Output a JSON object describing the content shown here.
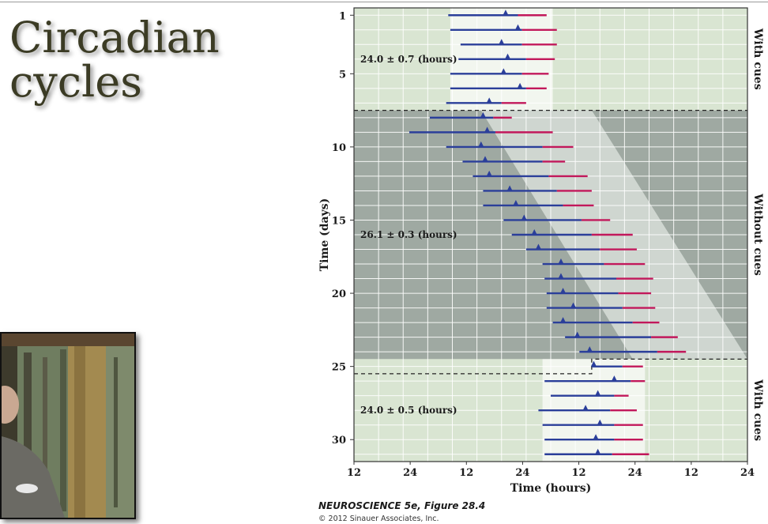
{
  "slide": {
    "title_line1": "Circadian",
    "title_line2": "cycles",
    "caption": "NEUROSCIENCE 5e, Figure 28.4",
    "copyright": "© 2012 Sinauer Associates, Inc."
  },
  "chart_data": {
    "type": "actogram",
    "xlabel": "Time (hours)",
    "ylabel": "Time (days)",
    "x_ticks": [
      "12",
      "24",
      "12",
      "24",
      "12",
      "24",
      "12",
      "24"
    ],
    "y_ticks": [
      1,
      5,
      10,
      15,
      20,
      25,
      30
    ],
    "xlim": [
      0,
      96
    ],
    "ylim": [
      1,
      31
    ],
    "grid": true,
    "phase_labels": [
      "With cues",
      "Without cues",
      "With cues"
    ],
    "period_annotations": [
      {
        "text": "24.0 ± 0.7 (hours)",
        "day": 4
      },
      {
        "text": "26.1 ± 0.3 (hours)",
        "day": 16
      },
      {
        "text": "24.0 ± 0.5 (hours)",
        "day": 28
      }
    ],
    "colors": {
      "wake": "#2b3f9a",
      "sleep": "#c2185b",
      "marker": "#2b3f9a",
      "bg_light": "#d9e5d2",
      "bg_dark": "#9fa9a2",
      "band_light": "#f2f6ef",
      "band_dark": "#cfd6d0"
    },
    "days": [
      {
        "day": 1,
        "start": 23.0,
        "marker": 37.0,
        "sleep_start": 40.0,
        "end": 47.0
      },
      {
        "day": 2,
        "start": 23.5,
        "marker": 40.0,
        "sleep_start": 41.0,
        "end": 49.5
      },
      {
        "day": 3,
        "start": 26.0,
        "marker": 36.0,
        "sleep_start": 41.0,
        "end": 49.5
      },
      {
        "day": 4,
        "start": 25.5,
        "marker": 37.5,
        "sleep_start": 42.0,
        "end": 49.0
      },
      {
        "day": 5,
        "start": 23.5,
        "marker": 36.5,
        "sleep_start": 41.0,
        "end": 47.5
      },
      {
        "day": 6,
        "start": 23.5,
        "marker": 40.5,
        "sleep_start": 42.0,
        "end": 47.0
      },
      {
        "day": 7,
        "start": 22.5,
        "marker": 33.0,
        "sleep_start": 36.0,
        "end": 42.0
      },
      {
        "day": 8,
        "start": 18.5,
        "marker": 31.5,
        "sleep_start": 34.0,
        "end": 38.5
      },
      {
        "day": 9,
        "start": 13.5,
        "marker": 32.5,
        "sleep_start": 34.5,
        "end": 48.5
      },
      {
        "day": 10,
        "start": 22.5,
        "marker": 31.0,
        "sleep_start": 46.0,
        "end": 53.5
      },
      {
        "day": 11,
        "start": 26.5,
        "marker": 32.0,
        "sleep_start": 46.0,
        "end": 51.5
      },
      {
        "day": 12,
        "start": 29.0,
        "marker": 33.0,
        "sleep_start": 47.5,
        "end": 57.0
      },
      {
        "day": 13,
        "start": 31.5,
        "marker": 38.0,
        "sleep_start": 49.5,
        "end": 58.0
      },
      {
        "day": 14,
        "start": 31.5,
        "marker": 39.5,
        "sleep_start": 51.0,
        "end": 58.5
      },
      {
        "day": 15,
        "start": 36.5,
        "marker": 41.5,
        "sleep_start": 55.5,
        "end": 62.5
      },
      {
        "day": 16,
        "start": 38.5,
        "marker": 44.0,
        "sleep_start": 58.0,
        "end": 68.0
      },
      {
        "day": 17,
        "start": 42.0,
        "marker": 45.0,
        "sleep_start": 60.0,
        "end": 69.0
      },
      {
        "day": 18,
        "start": 46.0,
        "marker": 50.5,
        "sleep_start": 61.0,
        "end": 71.0
      },
      {
        "day": 19,
        "start": 46.5,
        "marker": 50.5,
        "sleep_start": 64.0,
        "end": 73.0
      },
      {
        "day": 20,
        "start": 47.0,
        "marker": 51.0,
        "sleep_start": 64.5,
        "end": 72.5
      },
      {
        "day": 21,
        "start": 47.0,
        "marker": 53.5,
        "sleep_start": 65.5,
        "end": 73.5
      },
      {
        "day": 22,
        "start": 48.5,
        "marker": 51.0,
        "sleep_start": 68.0,
        "end": 74.5
      },
      {
        "day": 23,
        "start": 51.5,
        "marker": 54.5,
        "sleep_start": 72.5,
        "end": 79.0
      },
      {
        "day": 24,
        "start": 55.0,
        "marker": 57.5,
        "sleep_start": 74.0,
        "end": 81.0
      },
      {
        "day": 25,
        "start": 58.0,
        "marker": 58.5,
        "sleep_start": 65.5,
        "end": 70.5
      },
      {
        "day": 26,
        "start": 46.5,
        "marker": 63.5,
        "sleep_start": 67.5,
        "end": 71.0
      },
      {
        "day": 27,
        "start": 48.0,
        "marker": 59.5,
        "sleep_start": 63.5,
        "end": 67.0
      },
      {
        "day": 28,
        "start": 45.0,
        "marker": 56.5,
        "sleep_start": 62.5,
        "end": 69.0
      },
      {
        "day": 29,
        "start": 46.0,
        "marker": 60.0,
        "sleep_start": 63.5,
        "end": 70.5
      },
      {
        "day": 30,
        "start": 46.5,
        "marker": 59.0,
        "sleep_start": 63.5,
        "end": 70.5
      },
      {
        "day": 31,
        "start": 46.5,
        "marker": 59.5,
        "sleep_start": 63.0,
        "end": 72.0
      }
    ]
  }
}
